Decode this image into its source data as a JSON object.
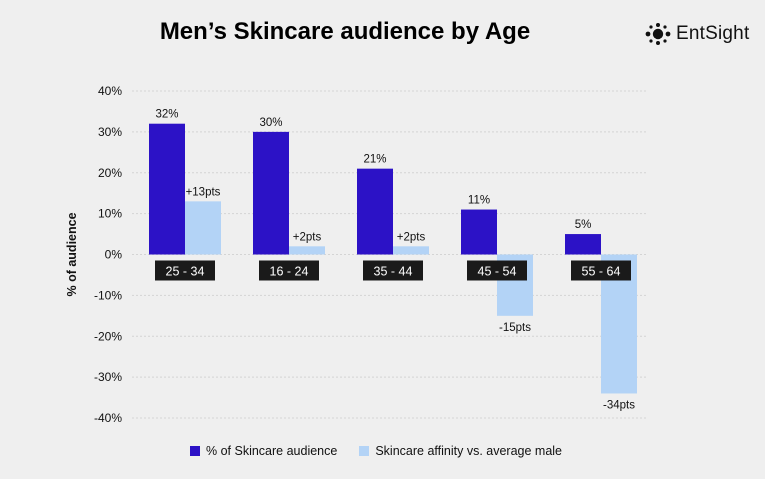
{
  "header": {
    "title": "Men’s Skincare audience by Age",
    "logo_text": "EntSight"
  },
  "colors": {
    "audience": "#2c12c6",
    "affinity": "#b3d3f6",
    "category_label_bg": "#1a1a1a",
    "category_label_text": "#ffffff"
  },
  "chart_data": {
    "type": "bar",
    "title": "Men’s Skincare audience by Age",
    "xlabel": "",
    "ylabel": "% of audience",
    "ylim": [
      -40,
      40
    ],
    "yticks": [
      40,
      30,
      20,
      10,
      0,
      -10,
      -20,
      -30,
      -40
    ],
    "ytick_labels": [
      "40%",
      "30%",
      "20%",
      "10%",
      "0%",
      "-10%",
      "-20%",
      "-30%",
      "-40%"
    ],
    "grid": true,
    "legend_position": "bottom",
    "categories": [
      "25 - 34",
      "16 - 24",
      "35 - 44",
      "45 - 54",
      "55 - 64"
    ],
    "series": [
      {
        "name": "% of Skincare audience",
        "values": [
          32,
          30,
          21,
          11,
          5
        ],
        "labels": [
          "32%",
          "30%",
          "21%",
          "11%",
          "5%"
        ]
      },
      {
        "name": "Skincare affinity vs. average male",
        "values": [
          13,
          2,
          2,
          -15,
          -34
        ],
        "labels": [
          "+13pts",
          "+2pts",
          "+2pts",
          "-15pts",
          "-34pts"
        ]
      }
    ]
  }
}
